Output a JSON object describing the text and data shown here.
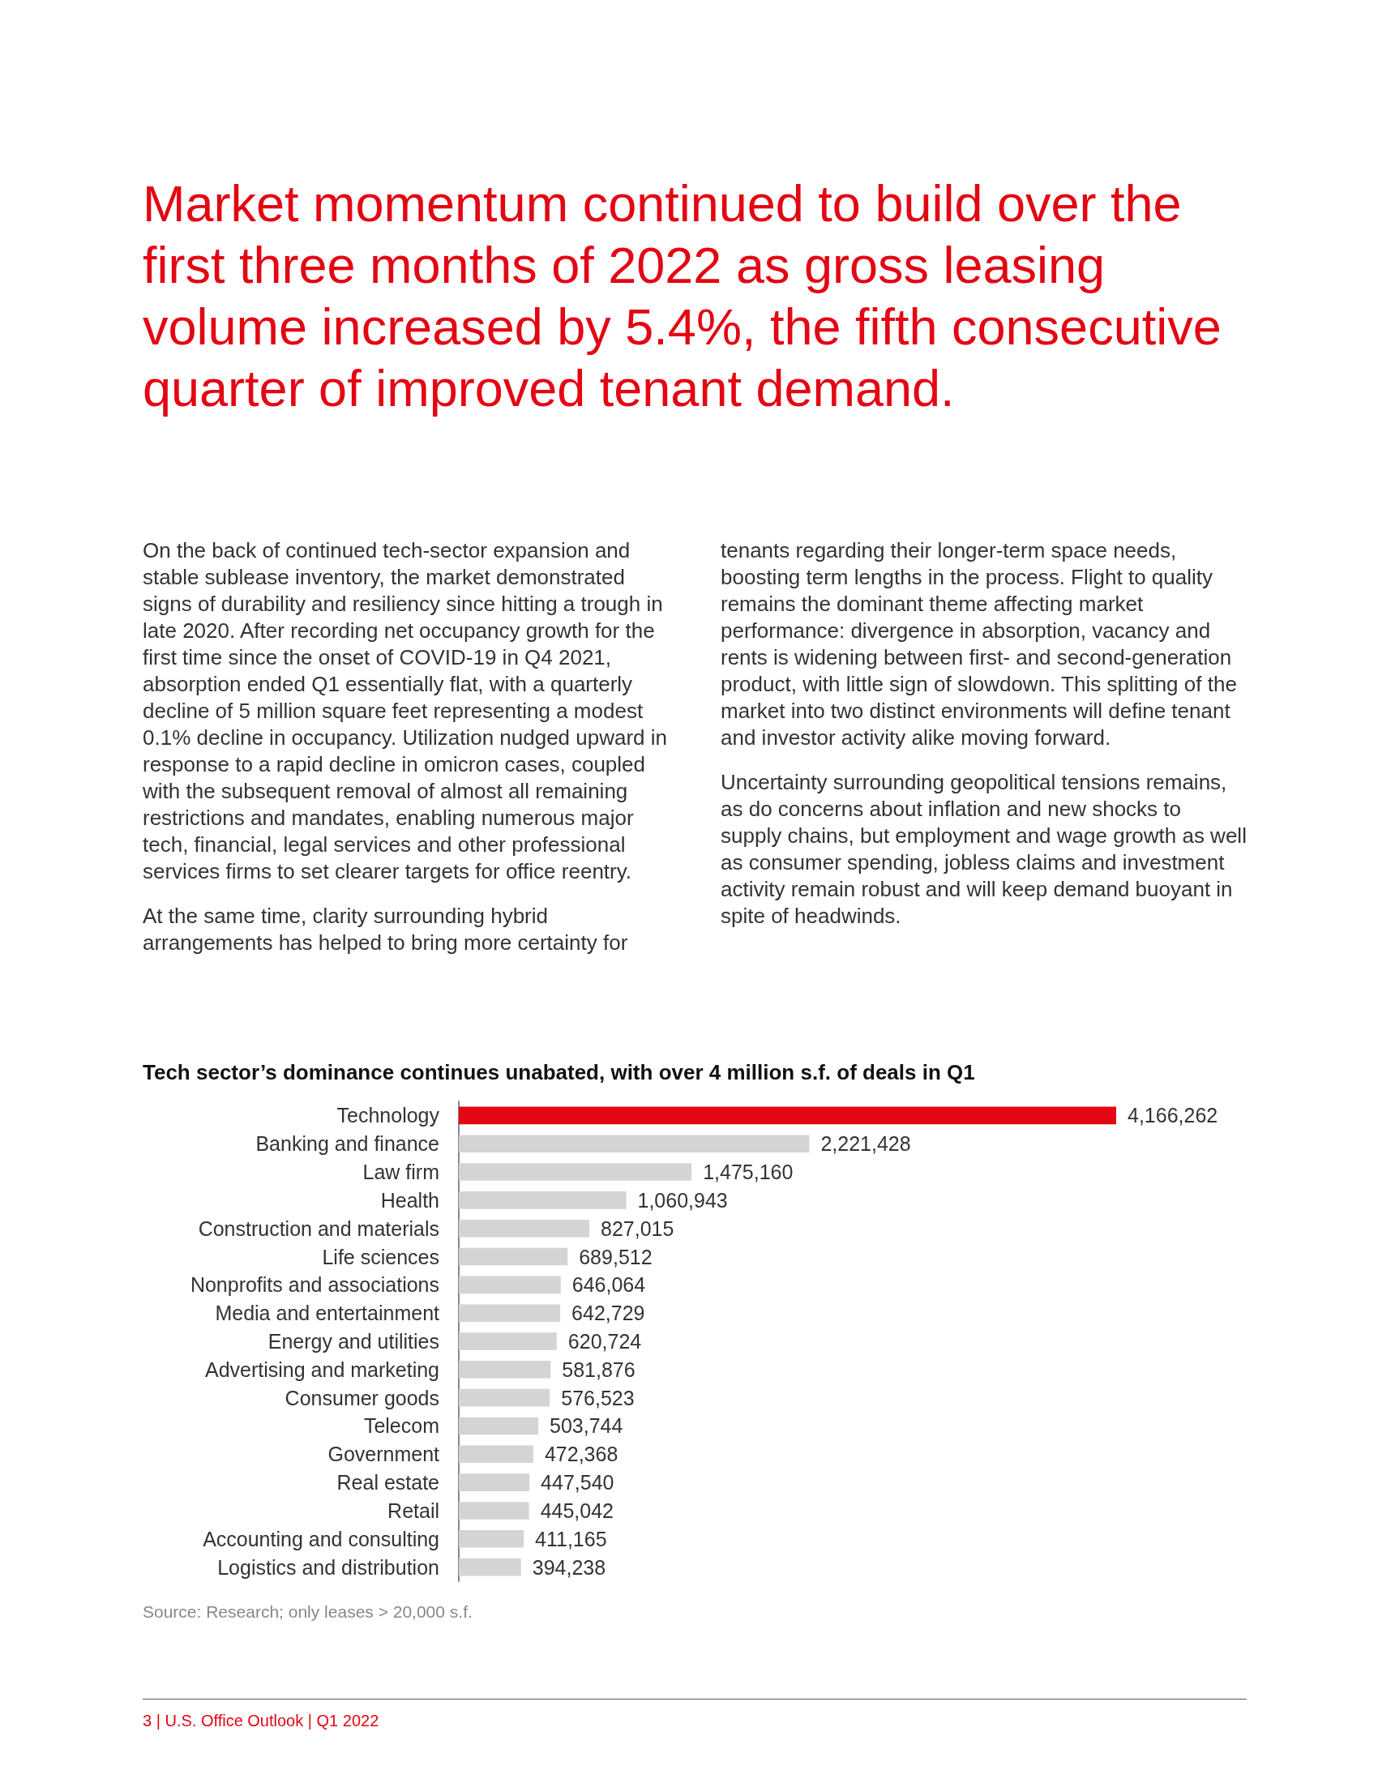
{
  "chart_data": {
    "type": "bar",
    "orientation": "horizontal",
    "title": "Tech sector’s dominance continues unabated, with over 4 million s.f. of deals in Q1",
    "categories": [
      "Technology",
      "Banking and finance",
      "Law firm",
      "Health",
      "Construction and materials",
      "Life sciences",
      "Nonprofits and associations",
      "Media and entertainment",
      "Energy and utilities",
      "Advertising and marketing",
      "Consumer goods",
      "Telecom",
      "Government",
      "Real estate",
      "Retail",
      "Accounting and consulting",
      "Logistics and distribution"
    ],
    "values": [
      4166262,
      2221428,
      1475160,
      1060943,
      827015,
      689512,
      646064,
      642729,
      620724,
      581876,
      576523,
      503744,
      472368,
      447540,
      445042,
      411165,
      394238
    ],
    "colors": [
      "#e30613",
      "#d4d4d4",
      "#d4d4d4",
      "#d4d4d4",
      "#d4d4d4",
      "#d4d4d4",
      "#d4d4d4",
      "#d4d4d4",
      "#d4d4d4",
      "#d4d4d4",
      "#d4d4d4",
      "#d4d4d4",
      "#d4d4d4",
      "#d4d4d4",
      "#d4d4d4",
      "#d4d4d4",
      "#d4d4d4"
    ],
    "value_labels": [
      "4,166,262",
      "2,221,428",
      "1,475,160",
      "1,060,943",
      "827,015",
      "689,512",
      "646,064",
      "642,729",
      "620,724",
      "581,876",
      "576,523",
      "503,744",
      "472,368",
      "447,540",
      "445,042",
      "411,165",
      "394,238"
    ],
    "annotations": [
      "Market momentum continued to build over the first three months of 2022 as gross leasing volume increased by 5.4%, the fifth consecutive quarter of improved tenant demand.",
      "On the back of continued tech-sector expansion and stable sublease inventory, the market demonstrated signs of durability and resiliency since hitting a trough in late 2020. After recording net occupancy growth for the first time since the onset of COVID-19 in Q4 2021, absorption ended Q1 essentially flat, with a quarterly decline of 5 million square feet representing a modest 0.1% decline in occupancy. Utilization nudged upward in response to a rapid decline in omicron cases, coupled with the subsequent removal of almost all remaining restrictions and mandates, enabling numerous major tech, financial, legal services and other professional services firms to set clearer targets for office reentry.",
      "At the same time, clarity surrounding hybrid arrangements has helped to bring more certainty for tenants regarding their longer-term space needs, boosting term lengths in the process. Flight to quality remains the dominant theme affecting market performance: divergence in absorption, vacancy and rents is widening between first- and second-generation product, with little sign of slowdown. This splitting of the market into two distinct environments will define tenant and investor activity alike moving forward.",
      "Uncertainty surrounding geopolitical tensions remains, as do concerns about inflation and new shocks to supply chains, but employment and wage growth as well as consumer spending, jobless claims and investment activity remain robust and will keep demand buoyant in spite of headwinds.",
      "Source: Research; only leases > 20,000 s.f.",
      "3 | U.S. Office Outlook | Q1 2022"
    ]
  }
}
